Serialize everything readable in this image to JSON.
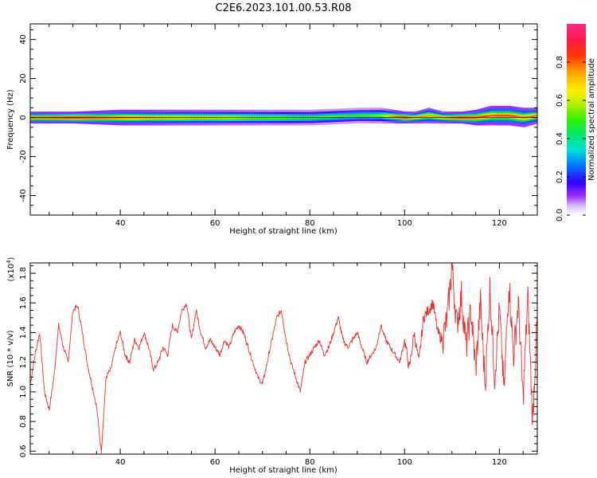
{
  "title": "C2E6.2023.101.00.53.R08",
  "chart_data": [
    {
      "type": "heatmap",
      "xlabel": "Height of straight line (km)",
      "ylabel": "Frequency (Hz)",
      "xlim": [
        21,
        128
      ],
      "ylim": [
        -50,
        48
      ],
      "xticks": [
        40,
        60,
        80,
        100,
        120
      ],
      "yticks": [
        -40,
        -20,
        0,
        20,
        40
      ],
      "colorbar": {
        "label": "Normalized spectral amplitude",
        "range": [
          0.0,
          1.0
        ],
        "ticks": [
          0.0,
          0.2,
          0.4,
          0.6,
          0.8
        ]
      },
      "ridge": {
        "x": [
          22,
          30,
          40,
          50,
          60,
          70,
          80,
          90,
          95,
          100,
          102,
          105,
          108,
          112,
          115,
          118,
          120,
          122,
          125,
          128
        ],
        "peak_hz": [
          0,
          0,
          0,
          0,
          0,
          0,
          0,
          1,
          1,
          0,
          0,
          1,
          0,
          0,
          0,
          1,
          1,
          1,
          0,
          1
        ],
        "width_hz": [
          3,
          3,
          4,
          4,
          4,
          4,
          4,
          4,
          4,
          3,
          3,
          4,
          3,
          3,
          4,
          5,
          5,
          5,
          5,
          4
        ],
        "amplitude": [
          0.9,
          1.0,
          0.85,
          0.75,
          0.7,
          0.6,
          0.55,
          0.5,
          0.55,
          1.0,
          0.8,
          0.75,
          0.8,
          1.0,
          0.9,
          0.8,
          0.85,
          0.85,
          0.8,
          0.8
        ]
      }
    },
    {
      "type": "line",
      "xlabel": "Height of straight line (km)",
      "ylabel": "SNR (10 * v/v)",
      "yscale_label": "(x10",
      "yscale_exponent": "4",
      "yscale_close": ")",
      "xlim": [
        21,
        128
      ],
      "ylim": [
        0.58,
        1.87
      ],
      "xticks": [
        40,
        60,
        80,
        100,
        120
      ],
      "yticks": [
        0.6,
        0.8,
        1.0,
        1.2,
        1.4,
        1.6,
        1.8
      ],
      "series": [
        {
          "color": "#e8312f",
          "x": [
            21,
            22,
            23,
            24,
            25,
            26,
            27,
            28,
            29,
            30,
            31,
            32,
            33,
            34,
            35,
            36,
            37,
            38,
            39,
            40,
            41,
            42,
            43,
            44,
            45,
            46,
            47,
            48,
            49,
            50,
            51,
            52,
            53,
            54,
            55,
            56,
            57,
            58,
            59,
            60,
            61,
            62,
            63,
            64,
            65,
            66,
            67,
            68,
            69,
            70,
            71,
            72,
            73,
            74,
            75,
            76,
            77,
            78,
            79,
            80,
            81,
            82,
            83,
            84,
            85,
            86,
            87,
            88,
            89,
            90,
            91,
            92,
            93,
            94,
            95,
            96,
            97,
            98,
            99,
            100,
            101,
            102,
            103,
            104,
            105,
            106,
            107,
            108,
            109,
            110,
            111,
            112,
            113,
            114,
            115,
            116,
            117,
            118,
            119,
            120,
            121,
            122,
            123,
            124,
            125,
            126,
            127,
            128
          ],
          "y": [
            1.05,
            1.25,
            1.4,
            1.0,
            0.88,
            1.1,
            1.45,
            1.3,
            1.2,
            1.55,
            1.58,
            1.4,
            1.2,
            1.05,
            0.9,
            0.6,
            1.1,
            1.15,
            1.3,
            1.4,
            1.25,
            1.2,
            1.35,
            1.3,
            1.4,
            1.3,
            1.15,
            1.2,
            1.3,
            1.25,
            1.45,
            1.4,
            1.55,
            1.6,
            1.35,
            1.55,
            1.4,
            1.3,
            1.35,
            1.3,
            1.25,
            1.35,
            1.3,
            1.4,
            1.45,
            1.4,
            1.3,
            1.2,
            1.1,
            1.05,
            1.2,
            1.35,
            1.5,
            1.55,
            1.35,
            1.2,
            1.1,
            1.0,
            1.2,
            1.25,
            1.3,
            1.35,
            1.25,
            1.3,
            1.4,
            1.5,
            1.35,
            1.3,
            1.35,
            1.4,
            1.3,
            1.2,
            1.25,
            1.3,
            1.45,
            1.35,
            1.3,
            1.25,
            1.2,
            1.35,
            1.15,
            1.4,
            1.2,
            1.5,
            1.55,
            1.6,
            1.4,
            1.35,
            1.5,
            1.85,
            1.45,
            1.65,
            1.3,
            1.55,
            1.15,
            1.6,
            1.05,
            1.7,
            1.1,
            1.55,
            1.0,
            1.75,
            1.25,
            1.6,
            0.95,
            1.65,
            0.8,
            1.5
          ]
        }
      ]
    }
  ]
}
